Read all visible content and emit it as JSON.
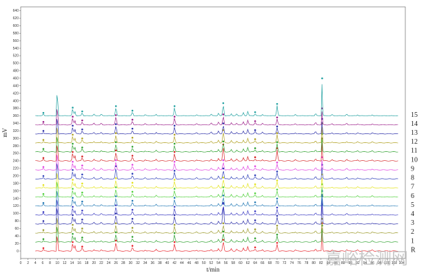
{
  "chart_data": {
    "type": "line",
    "title": "",
    "xlabel": "t/min",
    "ylabel": "mV",
    "xlim": [
      0,
      105
    ],
    "ylim": [
      -20,
      650
    ],
    "x_ticks": [
      0,
      2,
      4,
      6,
      8,
      10,
      12,
      14,
      16,
      18,
      20,
      22,
      24,
      26,
      28,
      30,
      32,
      34,
      36,
      38,
      40,
      42,
      44,
      46,
      48,
      50,
      52,
      54,
      56,
      58,
      60,
      62,
      64,
      66,
      68,
      70,
      72,
      74,
      76,
      78,
      80,
      82,
      84,
      86,
      88,
      90,
      92,
      94,
      96,
      98,
      100,
      102,
      104
    ],
    "y_ticks": [
      0,
      20,
      40,
      60,
      80,
      100,
      120,
      140,
      160,
      180,
      200,
      220,
      240,
      260,
      280,
      300,
      320,
      340,
      360,
      380,
      400,
      420,
      440,
      460,
      480,
      500,
      520,
      540,
      560,
      580,
      600,
      620,
      640
    ],
    "y_tick_labels": [
      "0",
      "20",
      "40",
      "60",
      "80",
      "100",
      "120",
      "140",
      "160",
      "180",
      "200",
      "220",
      "240",
      "260",
      "280",
      "300",
      "320",
      "340",
      "360",
      "380",
      "400",
      "420",
      "440",
      "460",
      "480",
      "500",
      "520",
      "540",
      "560",
      "580",
      "600",
      "620",
      "640"
    ],
    "x_tick_labels": [
      "0",
      "2",
      "4",
      "6",
      "8",
      "10",
      "12",
      "14",
      "16",
      "18",
      "20",
      "22",
      "24",
      "26",
      "28",
      "30",
      "32",
      "34",
      "36",
      "38",
      "40",
      "42",
      "44",
      "46",
      "48",
      "50",
      "52",
      "54",
      "56",
      "58",
      "60",
      "62",
      "64",
      "66",
      "68",
      "70",
      "72",
      "74",
      "76",
      "78",
      "80",
      "82",
      "84",
      "86",
      "88",
      "90",
      "92",
      "94",
      "96",
      "98",
      "100",
      "102",
      "104"
    ],
    "peak_times": [
      6.2,
      10.0,
      14.2,
      14.8,
      16.8,
      20.0,
      22.0,
      26.0,
      30.5,
      34.0,
      37.0,
      42.0,
      48.0,
      52.0,
      54.0,
      55.3,
      57.5,
      59.0,
      60.8,
      62.0,
      64.0,
      66.0,
      70.0,
      75.0,
      80.5,
      82.3,
      85.0,
      89.0,
      92.0,
      96.0
    ],
    "series": [
      {
        "name": "R",
        "baseline": 0,
        "color": "#e8232a",
        "heights": [
          4,
          86,
          20,
          14,
          8,
          4,
          4,
          24,
          10,
          3,
          4,
          20,
          3,
          5,
          7,
          26,
          6,
          5,
          8,
          12,
          6,
          4,
          18,
          3,
          6,
          70,
          3,
          4,
          3,
          3
        ]
      },
      {
        "name": "1",
        "baseline": 24,
        "color": "#2ca02c",
        "heights": [
          4,
          90,
          18,
          12,
          8,
          4,
          4,
          22,
          10,
          3,
          4,
          20,
          3,
          5,
          7,
          24,
          6,
          5,
          8,
          12,
          6,
          4,
          16,
          3,
          6,
          40,
          3,
          4,
          3,
          3
        ]
      },
      {
        "name": "2",
        "baseline": 48,
        "color": "#9c9a2b",
        "heights": [
          4,
          88,
          18,
          12,
          8,
          4,
          4,
          22,
          10,
          3,
          4,
          18,
          3,
          5,
          7,
          22,
          6,
          5,
          8,
          11,
          6,
          4,
          16,
          3,
          6,
          34,
          3,
          4,
          3,
          3
        ]
      },
      {
        "name": "3",
        "baseline": 72,
        "color": "#2b2ea8",
        "heights": [
          4,
          90,
          20,
          14,
          8,
          4,
          4,
          24,
          10,
          3,
          4,
          20,
          3,
          5,
          7,
          52,
          6,
          5,
          8,
          12,
          6,
          4,
          18,
          3,
          6,
          70,
          3,
          4,
          3,
          3
        ]
      },
      {
        "name": "4",
        "baseline": 96,
        "color": "#3a3ac2",
        "heights": [
          4,
          88,
          18,
          12,
          8,
          4,
          4,
          22,
          10,
          3,
          4,
          18,
          3,
          5,
          7,
          26,
          6,
          5,
          8,
          12,
          6,
          4,
          16,
          3,
          6,
          50,
          3,
          4,
          3,
          3
        ]
      },
      {
        "name": "5",
        "baseline": 120,
        "color": "#1f77b4",
        "heights": [
          4,
          88,
          18,
          12,
          8,
          4,
          4,
          22,
          10,
          3,
          4,
          18,
          3,
          5,
          7,
          24,
          6,
          5,
          8,
          11,
          6,
          4,
          16,
          3,
          6,
          36,
          3,
          4,
          3,
          3
        ]
      },
      {
        "name": "6",
        "baseline": 144,
        "color": "#4fd03a",
        "heights": [
          4,
          90,
          18,
          12,
          8,
          4,
          4,
          22,
          10,
          3,
          4,
          18,
          3,
          5,
          7,
          22,
          6,
          5,
          8,
          11,
          6,
          4,
          16,
          3,
          6,
          30,
          3,
          4,
          3,
          3
        ]
      },
      {
        "name": "7",
        "baseline": 168,
        "color": "#e3e31a",
        "heights": [
          4,
          88,
          18,
          12,
          8,
          4,
          4,
          22,
          10,
          3,
          4,
          18,
          3,
          5,
          7,
          24,
          6,
          5,
          8,
          11,
          6,
          4,
          16,
          3,
          6,
          32,
          3,
          4,
          3,
          3
        ]
      },
      {
        "name": "8",
        "baseline": 192,
        "color": "#2d3fb8",
        "heights": [
          4,
          90,
          20,
          14,
          8,
          4,
          4,
          30,
          10,
          3,
          4,
          18,
          3,
          5,
          7,
          24,
          6,
          5,
          8,
          11,
          6,
          4,
          16,
          3,
          6,
          34,
          3,
          4,
          3,
          3
        ]
      },
      {
        "name": "9",
        "baseline": 216,
        "color": "#e040e0",
        "heights": [
          4,
          88,
          18,
          12,
          8,
          4,
          4,
          22,
          10,
          3,
          4,
          18,
          3,
          5,
          7,
          22,
          6,
          5,
          8,
          11,
          6,
          4,
          16,
          3,
          6,
          30,
          3,
          4,
          3,
          3
        ]
      },
      {
        "name": "10",
        "baseline": 240,
        "color": "#d42020",
        "heights": [
          4,
          90,
          20,
          14,
          8,
          4,
          4,
          24,
          10,
          3,
          4,
          20,
          3,
          5,
          7,
          40,
          6,
          5,
          8,
          12,
          6,
          4,
          30,
          3,
          6,
          56,
          3,
          4,
          3,
          3
        ]
      },
      {
        "name": "11",
        "baseline": 264,
        "color": "#2ca02c",
        "heights": [
          4,
          88,
          18,
          12,
          8,
          4,
          4,
          22,
          10,
          3,
          4,
          18,
          3,
          5,
          7,
          24,
          6,
          5,
          8,
          12,
          6,
          4,
          22,
          3,
          6,
          44,
          3,
          4,
          3,
          3
        ]
      },
      {
        "name": "12",
        "baseline": 288,
        "color": "#b0a020",
        "heights": [
          4,
          90,
          18,
          12,
          8,
          4,
          4,
          22,
          10,
          3,
          4,
          18,
          3,
          5,
          7,
          30,
          6,
          5,
          8,
          12,
          6,
          4,
          22,
          3,
          6,
          48,
          3,
          4,
          3,
          3
        ]
      },
      {
        "name": "13",
        "baseline": 312,
        "color": "#2b2ea8",
        "heights": [
          4,
          88,
          18,
          12,
          8,
          4,
          4,
          22,
          10,
          3,
          4,
          18,
          3,
          5,
          7,
          24,
          6,
          5,
          8,
          11,
          6,
          4,
          16,
          3,
          6,
          36,
          3,
          4,
          3,
          3
        ]
      },
      {
        "name": "14",
        "baseline": 336,
        "color": "#9c1f8a",
        "heights": [
          4,
          90,
          18,
          12,
          8,
          4,
          4,
          22,
          10,
          3,
          4,
          18,
          3,
          5,
          7,
          24,
          6,
          5,
          8,
          12,
          6,
          4,
          16,
          3,
          6,
          40,
          3,
          4,
          3,
          3
        ]
      },
      {
        "name": "15",
        "baseline": 360,
        "color": "#20a0a0",
        "heights": [
          4,
          120,
          18,
          12,
          8,
          4,
          4,
          22,
          10,
          3,
          4,
          22,
          3,
          5,
          7,
          30,
          6,
          5,
          8,
          12,
          6,
          4,
          28,
          3,
          6,
          96,
          3,
          4,
          3,
          3
        ]
      }
    ],
    "grid": false,
    "legend": "right-side labels"
  },
  "watermark_text": "嘉峪检测网"
}
